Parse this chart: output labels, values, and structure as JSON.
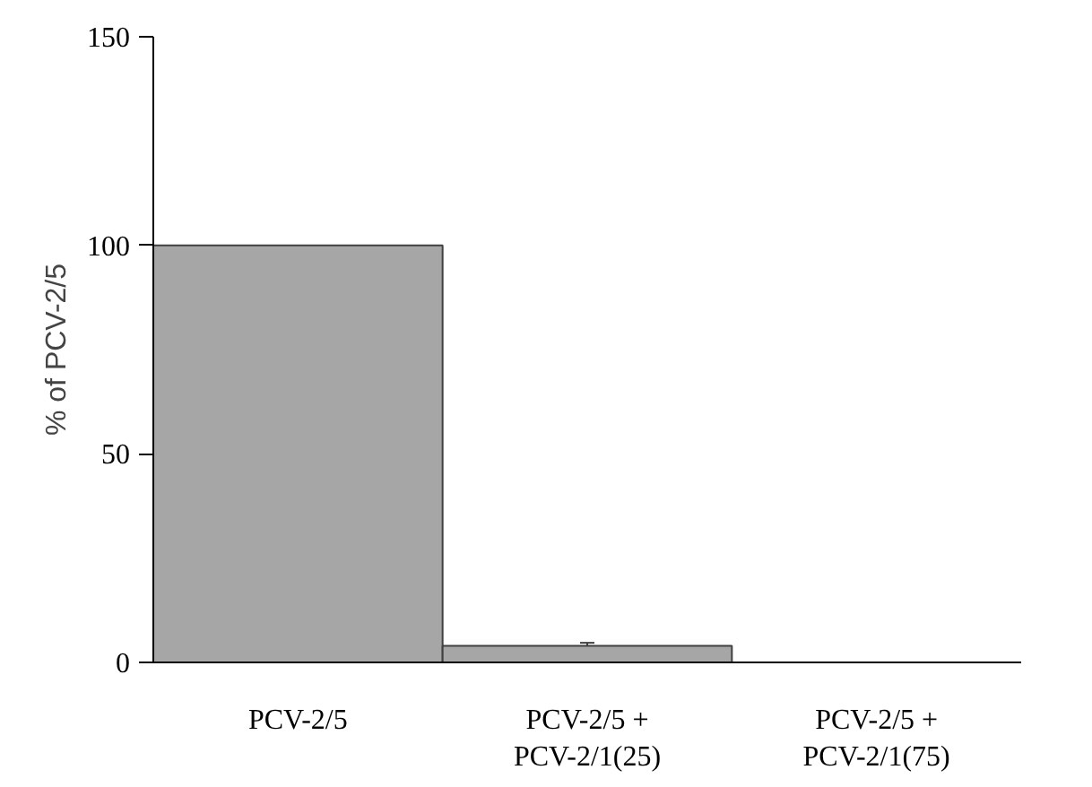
{
  "chart_data": {
    "type": "bar",
    "categories": [
      "PCV-2/5",
      "PCV-2/5 +\nPCV-2/1(25)",
      "PCV-2/5 +\nPCV-2/1(75)"
    ],
    "values": [
      100,
      4,
      0
    ],
    "errors": [
      null,
      0.7,
      null
    ],
    "color": "#a6a6a6",
    "ylabel": "% of PCV-2/5",
    "ylim": [
      0,
      150
    ],
    "yticks": [
      0,
      50,
      100,
      150
    ],
    "grid": false
  }
}
